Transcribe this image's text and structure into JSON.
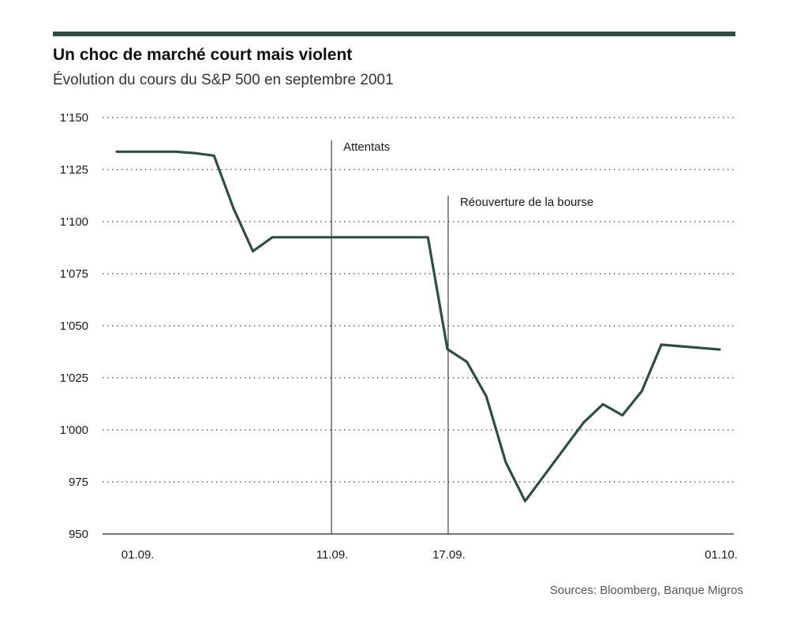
{
  "chart_data": {
    "type": "line",
    "title": "Un choc de marché court mais violent",
    "subtitle": "Évolution du cours du S&P 500 en septembre 2001",
    "source": "Sources: Bloomberg, Banque Migros",
    "xlabel": "",
    "ylabel": "",
    "x_ticks": [
      "01.09.",
      "11.09.",
      "17.09.",
      "01.10."
    ],
    "y_ticks": [
      "950",
      "975",
      "1'000",
      "1'025",
      "1'050",
      "1'075",
      "1'100",
      "1'125",
      "1'150"
    ],
    "ylim": [
      950,
      1150
    ],
    "grid": true,
    "series": [
      {
        "values": [
          {
            "x": "2001-08-31",
            "y": 1133.6
          },
          {
            "x": "2001-09-01",
            "y": 1133.6
          },
          {
            "x": "2001-09-02",
            "y": 1133.6
          },
          {
            "x": "2001-09-03",
            "y": 1133.6
          },
          {
            "x": "2001-09-04",
            "y": 1132.9
          },
          {
            "x": "2001-09-05",
            "y": 1131.7
          },
          {
            "x": "2001-09-06",
            "y": 1106.4
          },
          {
            "x": "2001-09-07",
            "y": 1085.8
          },
          {
            "x": "2001-09-08",
            "y": 1092.5
          },
          {
            "x": "2001-09-09",
            "y": 1092.5
          },
          {
            "x": "2001-09-10",
            "y": 1092.5
          },
          {
            "x": "2001-09-11",
            "y": 1092.5
          },
          {
            "x": "2001-09-12",
            "y": 1092.5
          },
          {
            "x": "2001-09-13",
            "y": 1092.5
          },
          {
            "x": "2001-09-14",
            "y": 1092.5
          },
          {
            "x": "2001-09-15",
            "y": 1092.5
          },
          {
            "x": "2001-09-16",
            "y": 1092.5
          },
          {
            "x": "2001-09-17",
            "y": 1038.8
          },
          {
            "x": "2001-09-18",
            "y": 1032.7
          },
          {
            "x": "2001-09-19",
            "y": 1016.1
          },
          {
            "x": "2001-09-20",
            "y": 984.5
          },
          {
            "x": "2001-09-21",
            "y": 965.8
          },
          {
            "x": "2001-09-24",
            "y": 1003.5
          },
          {
            "x": "2001-09-25",
            "y": 1012.3
          },
          {
            "x": "2001-09-26",
            "y": 1007.0
          },
          {
            "x": "2001-09-27",
            "y": 1018.6
          },
          {
            "x": "2001-09-28",
            "y": 1040.9
          },
          {
            "x": "2001-10-01",
            "y": 1038.6
          }
        ]
      }
    ],
    "annotations": [
      {
        "x": "2001-09-11",
        "label": "Attentats"
      },
      {
        "x": "2001-09-17",
        "label": "Réouverture de la bourse"
      }
    ],
    "colors": {
      "line": "#2e4e40",
      "rule": "#2e4e40",
      "grid": "#444444"
    }
  }
}
